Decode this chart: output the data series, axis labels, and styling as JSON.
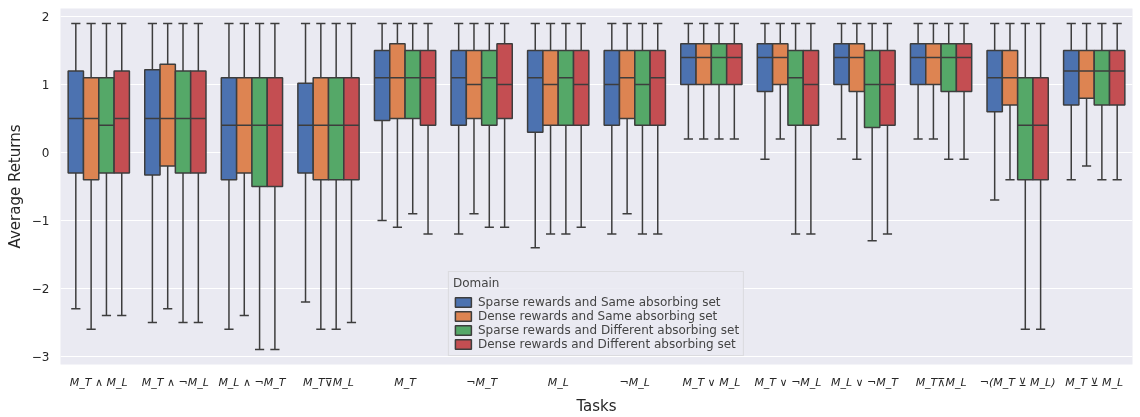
{
  "chart_data": {
    "type": "box",
    "xlabel": "Tasks",
    "ylabel": "Average Returns",
    "legend_title": "Domain",
    "legend": "bottom",
    "grid": "y",
    "categories": [
      "M_T ∧ M_L",
      "M_T ∧ ¬M_L",
      "M_L ∧ ¬M_T",
      "M_T⊽M_L",
      "M_T",
      "¬M_T",
      "M_L",
      "¬M_L",
      "M_T ∨ M_L",
      "M_T ∨ ¬M_L",
      "M_L ∨ ¬M_T",
      "M_T⊼M_L",
      "¬(M_T ⊻ M_L)",
      "M_T ⊻ M_L"
    ],
    "ylim": [
      -3.12,
      2.12
    ],
    "yticks": [
      {
        "value": -3,
        "label": "−3"
      },
      {
        "value": -2,
        "label": "−2"
      },
      {
        "value": -1,
        "label": "−1"
      },
      0,
      1,
      2
    ],
    "series": [
      {
        "name": "Sparse rewards and Same absorbing set",
        "color": "#4c72b0",
        "boxes": [
          {
            "low": -2.3,
            "q1": -0.3,
            "median": 0.5,
            "q3": 1.2,
            "high": 1.9
          },
          {
            "low": -2.5,
            "q1": -0.33,
            "median": 0.5,
            "q3": 1.22,
            "high": 1.9
          },
          {
            "low": -2.6,
            "q1": -0.4,
            "median": 0.4,
            "q3": 1.1,
            "high": 1.9
          },
          {
            "low": -2.2,
            "q1": -0.3,
            "median": 0.4,
            "q3": 1.02,
            "high": 1.9
          },
          {
            "low": -1.0,
            "q1": 0.47,
            "median": 1.1,
            "q3": 1.5,
            "high": 1.9
          },
          {
            "low": -1.2,
            "q1": 0.4,
            "median": 1.1,
            "q3": 1.5,
            "high": 1.9
          },
          {
            "low": -1.4,
            "q1": 0.3,
            "median": 1.1,
            "q3": 1.5,
            "high": 1.9
          },
          {
            "low": -1.2,
            "q1": 0.4,
            "median": 1.0,
            "q3": 1.5,
            "high": 1.9
          },
          {
            "low": 0.2,
            "q1": 1.0,
            "median": 1.4,
            "q3": 1.6,
            "high": 1.9
          },
          {
            "low": -0.1,
            "q1": 0.9,
            "median": 1.4,
            "q3": 1.6,
            "high": 1.9
          },
          {
            "low": 0.2,
            "q1": 1.0,
            "median": 1.4,
            "q3": 1.6,
            "high": 1.9
          },
          {
            "low": 0.2,
            "q1": 1.0,
            "median": 1.4,
            "q3": 1.6,
            "high": 1.9
          },
          {
            "low": -0.7,
            "q1": 0.6,
            "median": 1.1,
            "q3": 1.5,
            "high": 1.9
          },
          {
            "low": -0.4,
            "q1": 0.7,
            "median": 1.2,
            "q3": 1.5,
            "high": 1.9
          }
        ]
      },
      {
        "name": "Dense rewards and Same absorbing set",
        "color": "#dd8452",
        "boxes": [
          {
            "low": -2.6,
            "q1": -0.4,
            "median": 0.5,
            "q3": 1.1,
            "high": 1.9
          },
          {
            "low": -2.3,
            "q1": -0.2,
            "median": 0.5,
            "q3": 1.3,
            "high": 1.9
          },
          {
            "low": -2.4,
            "q1": -0.3,
            "median": 0.4,
            "q3": 1.1,
            "high": 1.9
          },
          {
            "low": -2.6,
            "q1": -0.4,
            "median": 0.4,
            "q3": 1.1,
            "high": 1.9
          },
          {
            "low": -1.1,
            "q1": 0.5,
            "median": 1.1,
            "q3": 1.6,
            "high": 1.9
          },
          {
            "low": -0.9,
            "q1": 0.5,
            "median": 1.0,
            "q3": 1.5,
            "high": 1.9
          },
          {
            "low": -1.2,
            "q1": 0.4,
            "median": 1.0,
            "q3": 1.5,
            "high": 1.9
          },
          {
            "low": -0.9,
            "q1": 0.5,
            "median": 1.1,
            "q3": 1.5,
            "high": 1.9
          },
          {
            "low": 0.2,
            "q1": 1.0,
            "median": 1.4,
            "q3": 1.6,
            "high": 1.9
          },
          {
            "low": 0.2,
            "q1": 1.0,
            "median": 1.4,
            "q3": 1.6,
            "high": 1.9
          },
          {
            "low": -0.1,
            "q1": 0.9,
            "median": 1.4,
            "q3": 1.6,
            "high": 1.9
          },
          {
            "low": 0.2,
            "q1": 1.0,
            "median": 1.4,
            "q3": 1.6,
            "high": 1.9
          },
          {
            "low": -0.4,
            "q1": 0.7,
            "median": 1.1,
            "q3": 1.5,
            "high": 1.9
          },
          {
            "low": -0.2,
            "q1": 0.8,
            "median": 1.2,
            "q3": 1.5,
            "high": 1.9
          }
        ]
      },
      {
        "name": "Sparse rewards and Different absorbing set",
        "color": "#55a868",
        "boxes": [
          {
            "low": -2.4,
            "q1": -0.3,
            "median": 0.4,
            "q3": 1.1,
            "high": 1.9
          },
          {
            "low": -2.5,
            "q1": -0.3,
            "median": 0.5,
            "q3": 1.2,
            "high": 1.9
          },
          {
            "low": -2.9,
            "q1": -0.5,
            "median": 0.4,
            "q3": 1.1,
            "high": 1.9
          },
          {
            "low": -2.6,
            "q1": -0.4,
            "median": 0.4,
            "q3": 1.1,
            "high": 1.9
          },
          {
            "low": -0.9,
            "q1": 0.5,
            "median": 1.1,
            "q3": 1.5,
            "high": 1.9
          },
          {
            "low": -1.1,
            "q1": 0.4,
            "median": 1.1,
            "q3": 1.5,
            "high": 1.9
          },
          {
            "low": -1.2,
            "q1": 0.4,
            "median": 1.1,
            "q3": 1.5,
            "high": 1.9
          },
          {
            "low": -1.2,
            "q1": 0.4,
            "median": 1.0,
            "q3": 1.5,
            "high": 1.9
          },
          {
            "low": 0.2,
            "q1": 1.0,
            "median": 1.4,
            "q3": 1.6,
            "high": 1.9
          },
          {
            "low": -1.2,
            "q1": 0.4,
            "median": 1.1,
            "q3": 1.5,
            "high": 1.9
          },
          {
            "low": -1.3,
            "q1": 0.37,
            "median": 1.0,
            "q3": 1.5,
            "high": 1.9
          },
          {
            "low": -0.1,
            "q1": 0.9,
            "median": 1.4,
            "q3": 1.6,
            "high": 1.9
          },
          {
            "low": -2.6,
            "q1": -0.4,
            "median": 0.4,
            "q3": 1.1,
            "high": 1.9
          },
          {
            "low": -0.4,
            "q1": 0.7,
            "median": 1.2,
            "q3": 1.5,
            "high": 1.9
          }
        ]
      },
      {
        "name": "Dense rewards and Different absorbing set",
        "color": "#c44e52",
        "boxes": [
          {
            "low": -2.4,
            "q1": -0.3,
            "median": 0.5,
            "q3": 1.2,
            "high": 1.9
          },
          {
            "low": -2.5,
            "q1": -0.3,
            "median": 0.5,
            "q3": 1.2,
            "high": 1.9
          },
          {
            "low": -2.9,
            "q1": -0.5,
            "median": 0.4,
            "q3": 1.1,
            "high": 1.9
          },
          {
            "low": -2.5,
            "q1": -0.4,
            "median": 0.4,
            "q3": 1.1,
            "high": 1.9
          },
          {
            "low": -1.2,
            "q1": 0.4,
            "median": 1.1,
            "q3": 1.5,
            "high": 1.9
          },
          {
            "low": -1.1,
            "q1": 0.5,
            "median": 1.0,
            "q3": 1.6,
            "high": 1.9
          },
          {
            "low": -1.1,
            "q1": 0.4,
            "median": 1.0,
            "q3": 1.5,
            "high": 1.9
          },
          {
            "low": -1.2,
            "q1": 0.4,
            "median": 1.1,
            "q3": 1.5,
            "high": 1.9
          },
          {
            "low": 0.2,
            "q1": 1.0,
            "median": 1.4,
            "q3": 1.6,
            "high": 1.9
          },
          {
            "low": -1.2,
            "q1": 0.4,
            "median": 1.0,
            "q3": 1.5,
            "high": 1.9
          },
          {
            "low": -1.2,
            "q1": 0.4,
            "median": 1.0,
            "q3": 1.5,
            "high": 1.9
          },
          {
            "low": -0.1,
            "q1": 0.9,
            "median": 1.4,
            "q3": 1.6,
            "high": 1.9
          },
          {
            "low": -2.6,
            "q1": -0.4,
            "median": 0.4,
            "q3": 1.1,
            "high": 1.9
          },
          {
            "low": -0.4,
            "q1": 0.7,
            "median": 1.2,
            "q3": 1.5,
            "high": 1.9
          }
        ]
      }
    ]
  }
}
